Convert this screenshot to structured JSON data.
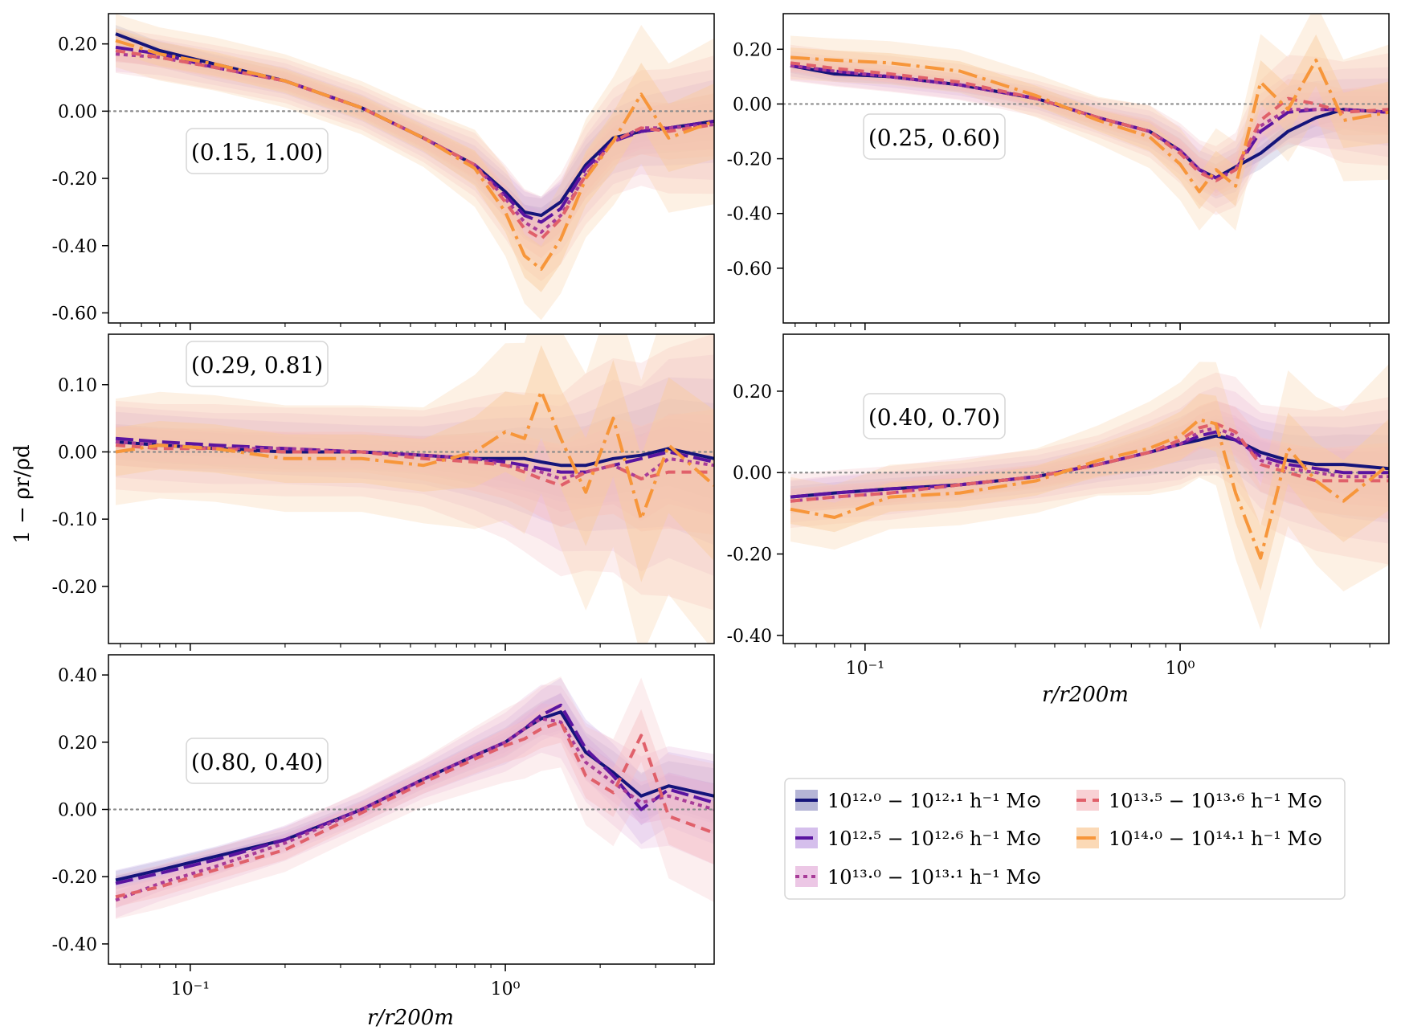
{
  "figure": {
    "ylabel": "1 − ρr/ρd",
    "xlabel": "r/r200m",
    "xlim": [
      0.055,
      4.6
    ]
  },
  "x_ticks": [
    {
      "value": 0.1,
      "label": "10⁻¹"
    },
    {
      "value": 1.0,
      "label": "10⁰"
    }
  ],
  "legend": {
    "entries": [
      {
        "label": "10¹²·⁰ − 10¹²·¹ h⁻¹ M⊙",
        "color": "#14147a",
        "band": "#9c9cc8",
        "dash": "solid"
      },
      {
        "label": "10¹²·⁵ − 10¹²·⁶ h⁻¹ M⊙",
        "color": "#5a14a0",
        "band": "#c7a9e6",
        "dash": "longdash"
      },
      {
        "label": "10¹³·⁰ − 10¹³·¹ h⁻¹ M⊙",
        "color": "#a83c98",
        "band": "#e6b4dc",
        "dash": "dotted"
      },
      {
        "label": "10¹³·⁵ − 10¹³·⁶ h⁻¹ M⊙",
        "color": "#e0606a",
        "band": "#f6c2c6",
        "dash": "dashed"
      },
      {
        "label": "10¹⁴·⁰ − 10¹⁴·¹ h⁻¹ M⊙",
        "color": "#f7963a",
        "band": "#f9cc9e",
        "dash": "dashdot"
      }
    ]
  },
  "chart_data": [
    {
      "type": "line",
      "panel": "top-left",
      "annotation": "(0.15, 1.00)",
      "ylim": [
        -0.63,
        0.29
      ],
      "yticks": [
        0.2,
        0.0,
        -0.2,
        -0.4,
        -0.6
      ],
      "ytick_labels": [
        "0.20",
        "0.00",
        "-0.20",
        "-0.40",
        "-0.60"
      ],
      "x": [
        0.058,
        0.08,
        0.12,
        0.2,
        0.35,
        0.55,
        0.8,
        1.0,
        1.15,
        1.3,
        1.5,
        1.8,
        2.2,
        2.7,
        3.3,
        4.6
      ],
      "series": [
        {
          "name": "10¹²·⁰ − 10¹²·¹ h⁻¹ M⊙",
          "values": [
            0.23,
            0.18,
            0.14,
            0.09,
            0.01,
            -0.08,
            -0.16,
            -0.24,
            -0.3,
            -0.31,
            -0.27,
            -0.16,
            -0.08,
            -0.06,
            -0.05,
            -0.03
          ]
        },
        {
          "name": "10¹²·⁵ − 10¹²·⁶ h⁻¹ M⊙",
          "values": [
            0.19,
            0.17,
            0.13,
            0.09,
            0.01,
            -0.08,
            -0.16,
            -0.25,
            -0.31,
            -0.33,
            -0.29,
            -0.17,
            -0.09,
            -0.06,
            -0.05,
            -0.03
          ]
        },
        {
          "name": "10¹³·⁰ − 10¹³·¹ h⁻¹ M⊙",
          "values": [
            0.17,
            0.16,
            0.13,
            0.09,
            0.01,
            -0.08,
            -0.16,
            -0.26,
            -0.33,
            -0.36,
            -0.31,
            -0.19,
            -0.09,
            -0.05,
            -0.05,
            -0.04
          ]
        },
        {
          "name": "10¹³·⁵ − 10¹³·⁶ h⁻¹ M⊙",
          "values": [
            0.18,
            0.16,
            0.13,
            0.09,
            0.01,
            -0.08,
            -0.16,
            -0.27,
            -0.35,
            -0.38,
            -0.32,
            -0.19,
            -0.09,
            -0.05,
            -0.06,
            -0.04
          ]
        },
        {
          "name": "10¹⁴·⁰ − 10¹⁴·¹ h⁻¹ M⊙",
          "values": [
            0.21,
            0.17,
            0.14,
            0.09,
            0.01,
            -0.08,
            -0.17,
            -0.3,
            -0.43,
            -0.47,
            -0.38,
            -0.2,
            -0.09,
            0.05,
            -0.08,
            -0.03
          ]
        }
      ]
    },
    {
      "type": "line",
      "panel": "top-right",
      "annotation": "(0.25, 0.60)",
      "ylim": [
        -0.8,
        0.33
      ],
      "yticks": [
        0.2,
        0.0,
        -0.2,
        -0.4,
        -0.6
      ],
      "ytick_labels": [
        "0.20",
        "0.00",
        "-0.20",
        "-0.40",
        "-0.60"
      ],
      "x": [
        0.058,
        0.08,
        0.12,
        0.2,
        0.35,
        0.55,
        0.8,
        1.0,
        1.15,
        1.3,
        1.5,
        1.8,
        2.2,
        2.7,
        3.3,
        4.6
      ],
      "series": [
        {
          "name": "10¹²·⁰ − 10¹²·¹ h⁻¹ M⊙",
          "values": [
            0.14,
            0.11,
            0.1,
            0.07,
            0.02,
            -0.05,
            -0.1,
            -0.17,
            -0.24,
            -0.27,
            -0.23,
            -0.18,
            -0.1,
            -0.05,
            -0.02,
            -0.03
          ]
        },
        {
          "name": "10¹²·⁵ − 10¹²·⁶ h⁻¹ M⊙",
          "values": [
            0.14,
            0.12,
            0.1,
            0.07,
            0.02,
            -0.05,
            -0.1,
            -0.17,
            -0.24,
            -0.27,
            -0.24,
            -0.1,
            -0.03,
            -0.02,
            -0.02,
            -0.03
          ]
        },
        {
          "name": "10¹³·⁰ − 10¹³·¹ h⁻¹ M⊙",
          "values": [
            0.14,
            0.12,
            0.1,
            0.07,
            0.02,
            -0.05,
            -0.1,
            -0.17,
            -0.24,
            -0.28,
            -0.24,
            -0.08,
            -0.02,
            -0.02,
            -0.02,
            -0.03
          ]
        },
        {
          "name": "10¹³·⁵ − 10¹³·⁶ h⁻¹ M⊙",
          "values": [
            0.15,
            0.13,
            0.11,
            0.08,
            0.02,
            -0.05,
            -0.1,
            -0.18,
            -0.25,
            -0.28,
            -0.24,
            -0.06,
            0.02,
            0.0,
            -0.03,
            -0.02
          ]
        },
        {
          "name": "10¹⁴·⁰ − 10¹⁴·¹ h⁻¹ M⊙",
          "values": [
            0.17,
            0.16,
            0.15,
            0.12,
            0.03,
            -0.06,
            -0.12,
            -0.22,
            -0.32,
            -0.24,
            -0.3,
            0.08,
            -0.02,
            0.16,
            -0.06,
            -0.03
          ]
        }
      ]
    },
    {
      "type": "line",
      "panel": "middle-left",
      "annotation": "(0.29, 0.81)",
      "ylim": [
        -0.285,
        0.175
      ],
      "yticks": [
        0.1,
        0.0,
        -0.1,
        -0.2
      ],
      "ytick_labels": [
        "0.10",
        "0.00",
        "-0.10",
        "-0.20"
      ],
      "x": [
        0.058,
        0.08,
        0.12,
        0.2,
        0.35,
        0.55,
        0.8,
        1.0,
        1.15,
        1.3,
        1.5,
        1.8,
        2.2,
        2.7,
        3.3,
        4.6
      ],
      "series": [
        {
          "name": "10¹²·⁰ − 10¹²·¹ h⁻¹ M⊙",
          "values": [
            0.015,
            0.01,
            0.005,
            0.0,
            0.0,
            -0.005,
            -0.01,
            -0.01,
            -0.01,
            -0.015,
            -0.02,
            -0.02,
            -0.01,
            -0.005,
            0.005,
            -0.01
          ]
        },
        {
          "name": "10¹²·⁵ − 10¹²·⁶ h⁻¹ M⊙",
          "values": [
            0.02,
            0.015,
            0.01,
            0.005,
            0.0,
            -0.005,
            -0.01,
            -0.015,
            -0.02,
            -0.025,
            -0.03,
            -0.03,
            -0.02,
            -0.01,
            0.0,
            -0.015
          ]
        },
        {
          "name": "10¹³·⁰ − 10¹³·¹ h⁻¹ M⊙",
          "values": [
            0.015,
            0.01,
            0.005,
            0.005,
            0.0,
            -0.005,
            -0.01,
            -0.02,
            -0.025,
            -0.03,
            -0.04,
            -0.03,
            -0.02,
            -0.04,
            -0.01,
            -0.02
          ]
        },
        {
          "name": "10¹³·⁵ − 10¹³·⁶ h⁻¹ M⊙",
          "values": [
            0.01,
            0.005,
            0.005,
            0.0,
            0.0,
            -0.01,
            -0.015,
            -0.02,
            -0.03,
            -0.04,
            -0.05,
            -0.03,
            -0.02,
            -0.04,
            -0.03,
            -0.03
          ]
        },
        {
          "name": "10¹⁴·⁰ − 10¹⁴·¹ h⁻¹ M⊙",
          "values": [
            0.0,
            0.01,
            0.005,
            -0.01,
            -0.01,
            -0.02,
            0.0,
            0.03,
            0.02,
            0.09,
            0.02,
            -0.06,
            0.05,
            -0.1,
            0.01,
            -0.05
          ]
        }
      ]
    },
    {
      "type": "line",
      "panel": "middle-right",
      "annotation": "(0.40, 0.70)",
      "ylim": [
        -0.42,
        0.34
      ],
      "yticks": [
        0.2,
        0.0,
        -0.2,
        -0.4
      ],
      "ytick_labels": [
        "0.20",
        "0.00",
        "-0.20",
        "-0.40"
      ],
      "x": [
        0.058,
        0.08,
        0.12,
        0.2,
        0.35,
        0.55,
        0.8,
        1.0,
        1.15,
        1.3,
        1.5,
        1.8,
        2.2,
        2.7,
        3.3,
        4.6
      ],
      "series": [
        {
          "name": "10¹²·⁰ − 10¹²·¹ h⁻¹ M⊙",
          "values": [
            -0.06,
            -0.05,
            -0.04,
            -0.03,
            -0.01,
            0.02,
            0.05,
            0.07,
            0.08,
            0.09,
            0.08,
            0.05,
            0.03,
            0.02,
            0.02,
            0.01
          ]
        },
        {
          "name": "10¹²·⁵ − 10¹²·⁶ h⁻¹ M⊙",
          "values": [
            -0.06,
            -0.05,
            -0.04,
            -0.03,
            -0.01,
            0.02,
            0.05,
            0.07,
            0.09,
            0.1,
            0.08,
            0.04,
            0.02,
            0.01,
            0.0,
            0.0
          ]
        },
        {
          "name": "10¹³·⁰ − 10¹³·¹ h⁻¹ M⊙",
          "values": [
            -0.07,
            -0.06,
            -0.05,
            -0.03,
            -0.01,
            0.02,
            0.05,
            0.07,
            0.1,
            0.11,
            0.09,
            0.03,
            0.01,
            0.0,
            -0.01,
            -0.01
          ]
        },
        {
          "name": "10¹³·⁵ − 10¹³·⁶ h⁻¹ M⊙",
          "values": [
            -0.07,
            -0.06,
            -0.05,
            -0.03,
            -0.01,
            0.02,
            0.05,
            0.08,
            0.11,
            0.12,
            0.1,
            0.02,
            0.0,
            -0.02,
            -0.02,
            -0.02
          ]
        },
        {
          "name": "10¹⁴·⁰ − 10¹⁴·¹ h⁻¹ M⊙",
          "values": [
            -0.09,
            -0.11,
            -0.06,
            -0.05,
            -0.02,
            0.03,
            0.06,
            0.09,
            0.13,
            0.12,
            -0.05,
            -0.21,
            0.06,
            -0.02,
            -0.07,
            0.02
          ]
        }
      ]
    },
    {
      "type": "line",
      "panel": "bottom-left",
      "annotation": "(0.80, 0.40)",
      "ylim": [
        -0.46,
        0.46
      ],
      "yticks": [
        0.4,
        0.2,
        0.0,
        -0.2,
        -0.4
      ],
      "ytick_labels": [
        "0.40",
        "0.20",
        "0.00",
        "-0.20",
        "-0.40"
      ],
      "x": [
        0.058,
        0.08,
        0.12,
        0.2,
        0.35,
        0.55,
        0.8,
        1.0,
        1.15,
        1.3,
        1.5,
        1.8,
        2.2,
        2.7,
        3.3,
        4.6
      ],
      "series": [
        {
          "name": "10¹²·⁰ − 10¹²·¹ h⁻¹ M⊙",
          "values": [
            -0.21,
            -0.18,
            -0.14,
            -0.09,
            0.0,
            0.09,
            0.16,
            0.2,
            0.24,
            0.27,
            0.29,
            0.17,
            0.11,
            0.04,
            0.07,
            0.04
          ]
        },
        {
          "name": "10¹²·⁵ − 10¹²·⁶ h⁻¹ M⊙",
          "values": [
            -0.22,
            -0.19,
            -0.15,
            -0.09,
            0.0,
            0.09,
            0.16,
            0.2,
            0.24,
            0.28,
            0.31,
            0.18,
            0.1,
            0.0,
            0.06,
            0.02
          ]
        },
        {
          "name": "10¹³·⁰ − 10¹³·¹ h⁻¹ M⊙",
          "values": [
            -0.27,
            -0.22,
            -0.17,
            -0.1,
            0.0,
            0.09,
            0.16,
            0.2,
            0.24,
            0.27,
            0.26,
            0.14,
            0.08,
            0.02,
            0.04,
            0.0
          ]
        },
        {
          "name": "10¹³·⁵ − 10¹³·⁶ h⁻¹ M⊙",
          "values": [
            -0.26,
            -0.23,
            -0.18,
            -0.12,
            -0.01,
            0.08,
            0.15,
            0.19,
            0.21,
            0.24,
            0.26,
            0.1,
            0.05,
            0.22,
            -0.02,
            -0.07
          ]
        }
      ]
    }
  ]
}
